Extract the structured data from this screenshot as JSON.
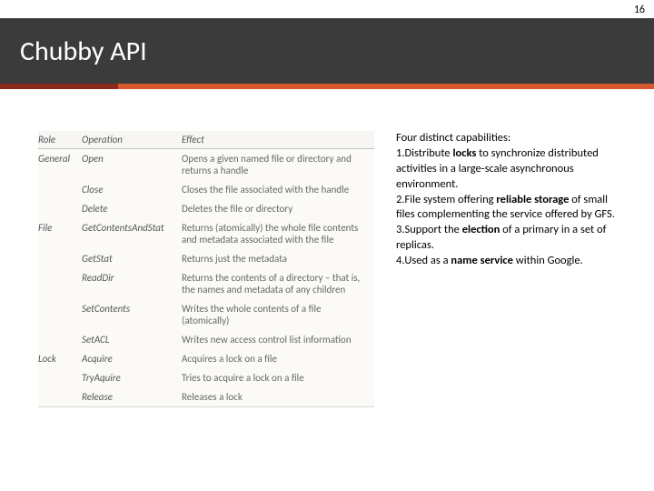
{
  "pageNumber": "16",
  "title": "Chubby API",
  "accent": {
    "leftColor": "#8a2a1c",
    "rightColor": "#d8562b",
    "leftWidth": 130
  },
  "table": {
    "background": "#fbfaf7",
    "headerBg": "#f8f6f2",
    "columns": [
      "Role",
      "Operation",
      "Effect"
    ],
    "rows": [
      [
        "General",
        "Open",
        "Opens a given named file or directory and returns a handle"
      ],
      [
        "",
        "Close",
        "Closes the file associated with the handle"
      ],
      [
        "",
        "Delete",
        "Deletes the file or directory"
      ],
      [
        "File",
        "GetContentsAndStat",
        "Returns (atomically) the whole file contents and metadata associated with the file"
      ],
      [
        "",
        "GetStat",
        "Returns just the metadata"
      ],
      [
        "",
        "ReadDir",
        "Returns the contents of a directory – that is, the names and metadata of any children"
      ],
      [
        "",
        "SetContents",
        "Writes the whole contents of a file (atomically)"
      ],
      [
        "",
        "SetACL",
        "Writes new access control list information"
      ],
      [
        "Lock",
        "Acquire",
        "Acquires a lock on a file"
      ],
      [
        "",
        "TryAquire",
        "Tries to acquire a lock on a file"
      ],
      [
        "",
        "Release",
        "Releases a lock"
      ]
    ]
  },
  "text": {
    "intro": "Four distinct capabilities:",
    "p1a": "1.Distribute ",
    "p1b": "locks",
    "p1c": " to synchronize distributed activities in a large-scale asynchronous environment.",
    "p2a": "2.File system offering ",
    "p2b": "reliable storage",
    "p2c": " of small files complementing the service offered by GFS.",
    "p3a": "3.Support the ",
    "p3b": "election",
    "p3c": " of a primary in a set of replicas.",
    "p4a": "4.Used as a ",
    "p4b": "name service",
    "p4c": " within Google."
  }
}
